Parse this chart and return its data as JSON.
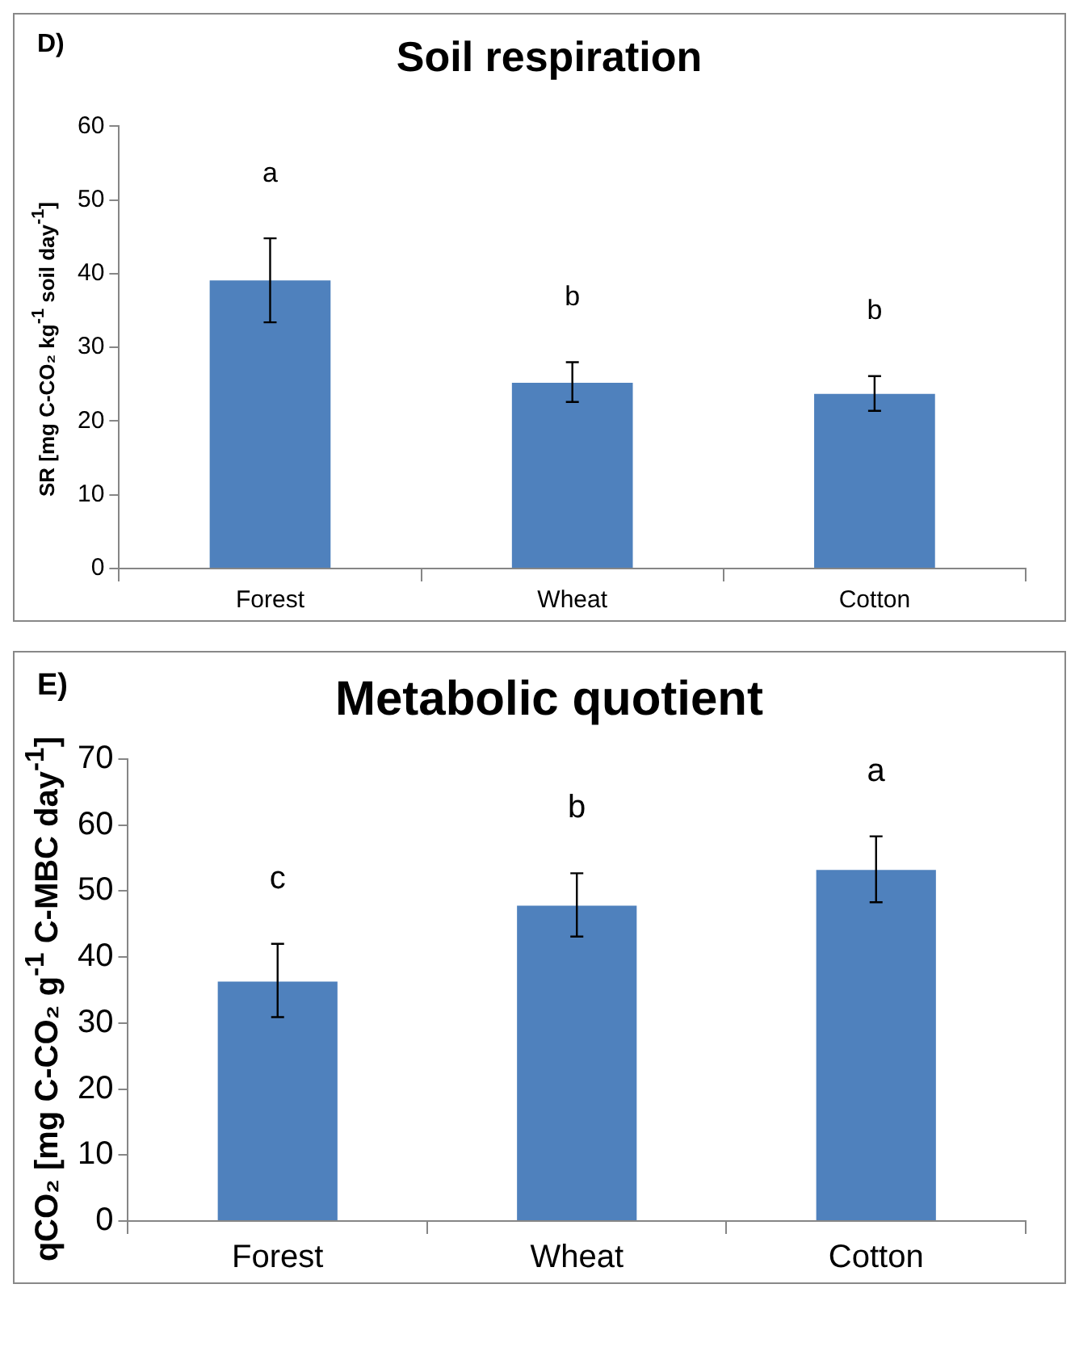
{
  "chart_data": [
    {
      "type": "bar",
      "title": "Soil respiration",
      "ylabel": "SR [mg C-CO₂ kg$^{-1}$ soil day$^{-1}$]",
      "categories": [
        "Forest",
        "Wheat",
        "Cotton"
      ],
      "values": [
        39.1,
        25.2,
        23.7
      ],
      "color": "#4f81bd",
      "errors": [
        [
          33.4,
          44.8
        ],
        [
          22.6,
          28.0
        ],
        [
          21.4,
          26.1
        ]
      ],
      "ylim": [
        0,
        60
      ],
      "yticks": [
        0,
        10,
        20,
        30,
        40,
        50,
        60
      ],
      "grid": false,
      "annotations": [
        "D)",
        "a",
        "b",
        "b"
      ]
    },
    {
      "type": "bar",
      "title": "Metabolic quotient",
      "ylabel": "qCO₂ [mg C-CO₂ g$^{-1}$ C-MBC day$^{-1}$]",
      "categories": [
        "Forest",
        "Wheat",
        "Cotton"
      ],
      "values": [
        36.3,
        47.8,
        53.2
      ],
      "color": "#4f81bd",
      "errors": [
        [
          30.9,
          42.0
        ],
        [
          43.1,
          52.7
        ],
        [
          48.3,
          58.3
        ]
      ],
      "ylim": [
        0,
        70
      ],
      "yticks": [
        0,
        10,
        20,
        30,
        40,
        50,
        60,
        70
      ],
      "grid": false,
      "annotations": [
        "E)",
        "c",
        "b",
        "a"
      ]
    }
  ]
}
